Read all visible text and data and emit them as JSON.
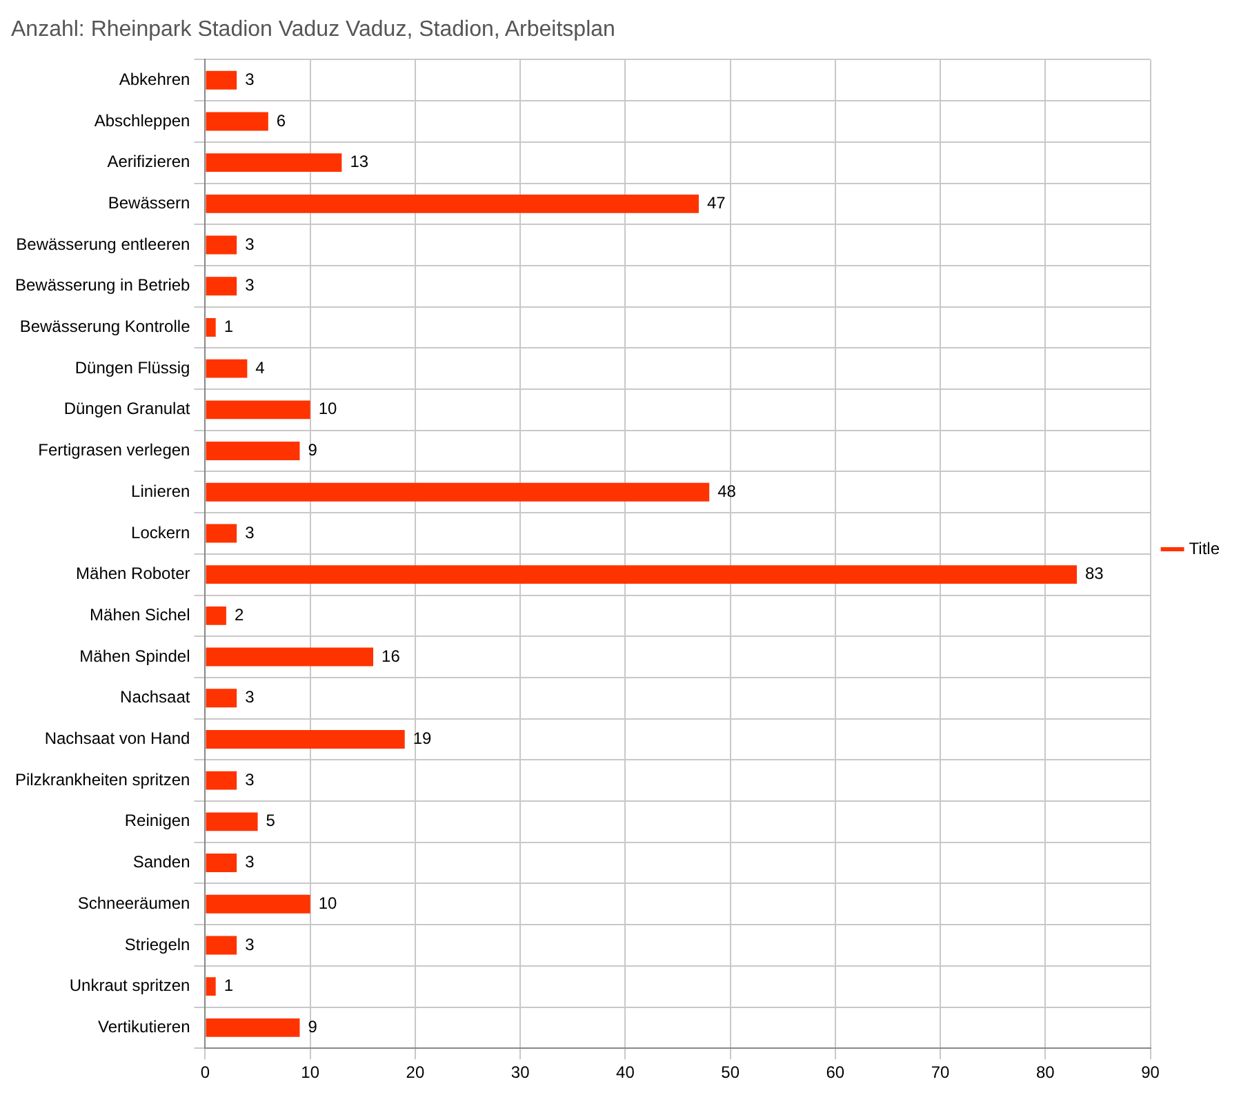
{
  "chart_data": {
    "type": "bar",
    "orientation": "horizontal",
    "title": "Anzahl: Rheinpark Stadion Vaduz Vaduz, Stadion, Arbeitsplan",
    "categories": [
      "Abkehren",
      "Abschleppen",
      "Aerifizieren",
      "Bewässern",
      "Bewässerung entleeren",
      "Bewässerung in Betrieb",
      "Bewässerung Kontrolle",
      "Düngen Flüssig",
      "Düngen Granulat",
      "Fertigrasen verlegen",
      "Linieren",
      "Lockern",
      "Mähen Roboter",
      "Mähen Sichel",
      "Mähen Spindel",
      "Nachsaat",
      "Nachsaat von Hand",
      "Pilzkrankheiten spritzen",
      "Reinigen",
      "Sanden",
      "Schneeräumen",
      "Striegeln",
      "Unkraut spritzen",
      "Vertikutieren"
    ],
    "series": [
      {
        "name": "Title",
        "color": "#ff3300",
        "values": [
          3,
          6,
          13,
          47,
          3,
          3,
          1,
          4,
          10,
          9,
          48,
          3,
          83,
          2,
          16,
          3,
          19,
          3,
          5,
          3,
          10,
          3,
          1,
          9
        ]
      }
    ],
    "xlim": [
      0,
      90
    ],
    "xticks": [
      0,
      10,
      20,
      30,
      40,
      50,
      60,
      70,
      80,
      90
    ],
    "grid": true,
    "legend": "right",
    "data_labels": true
  }
}
